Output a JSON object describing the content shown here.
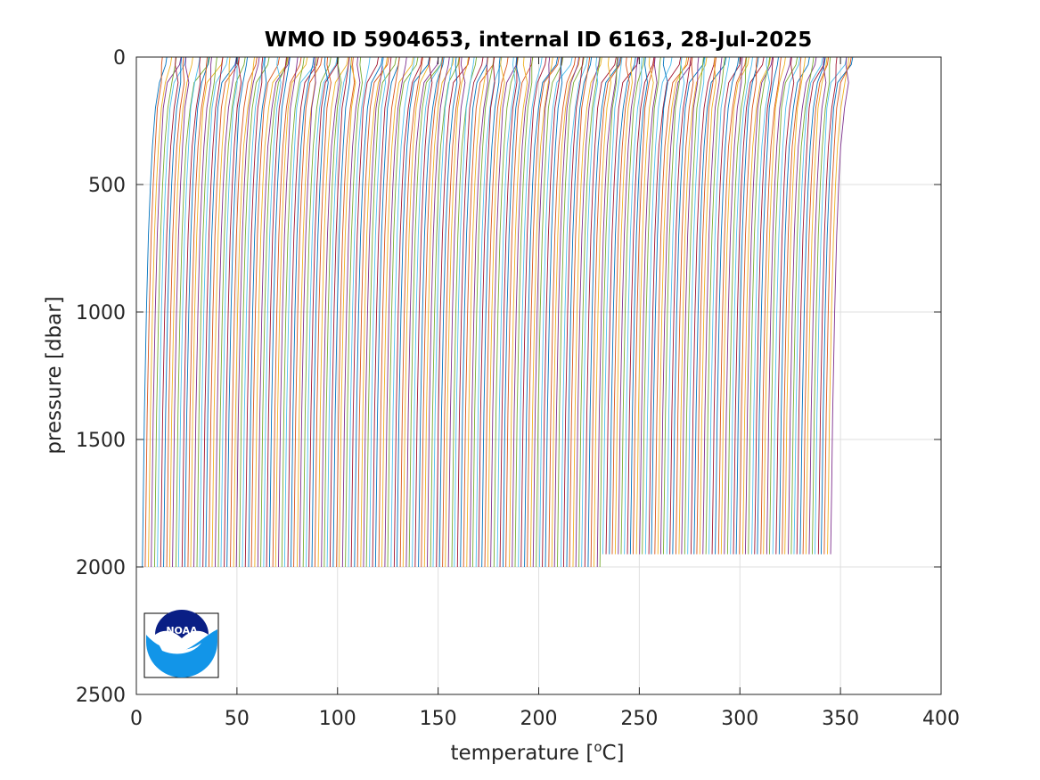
{
  "chart_data": {
    "type": "line",
    "title": "WMO ID 5904653, internal ID 6163, 28-Jul-2025",
    "xlabel": "temperature [",
    "xlabel_sup": "o",
    "xlabel_unit": "C]",
    "ylabel": "pressure [dbar]",
    "xlim": [
      0,
      400
    ],
    "ylim": [
      0,
      2500
    ],
    "y_reversed": true,
    "grid": true,
    "xticks": [
      "0",
      "50",
      "100",
      "150",
      "200",
      "250",
      "300",
      "350",
      "400"
    ],
    "yticks": [
      "0",
      "500",
      "1000",
      "1500",
      "2000",
      "2500"
    ],
    "series_colors": [
      "#0072bd",
      "#d95319",
      "#edb120",
      "#7e2f8e",
      "#77ac30",
      "#4dbeee",
      "#a2142f"
    ],
    "series_description": "Waterfall of profiles, each offset in temperature; offsets span roughly 3 to 345 degrees, profiles extend to ~2000 dbar (later ones to ~1950 dbar)",
    "profile_count": 228,
    "profile_offset_start": 3,
    "profile_offset_end": 345,
    "profile_max_pressure_early": 2000,
    "profile_max_pressure_late": 1950,
    "profile_shape_pressure": [
      0,
      30,
      100,
      200,
      350,
      500,
      700,
      1000,
      1400,
      1700,
      2000
    ],
    "profile_shape_temp_offset": [
      11,
      10.5,
      8.5,
      6.5,
      5,
      4,
      3,
      2,
      1,
      0.5,
      0
    ]
  },
  "logo": {
    "name": "NOAA",
    "text": "NOAA"
  }
}
